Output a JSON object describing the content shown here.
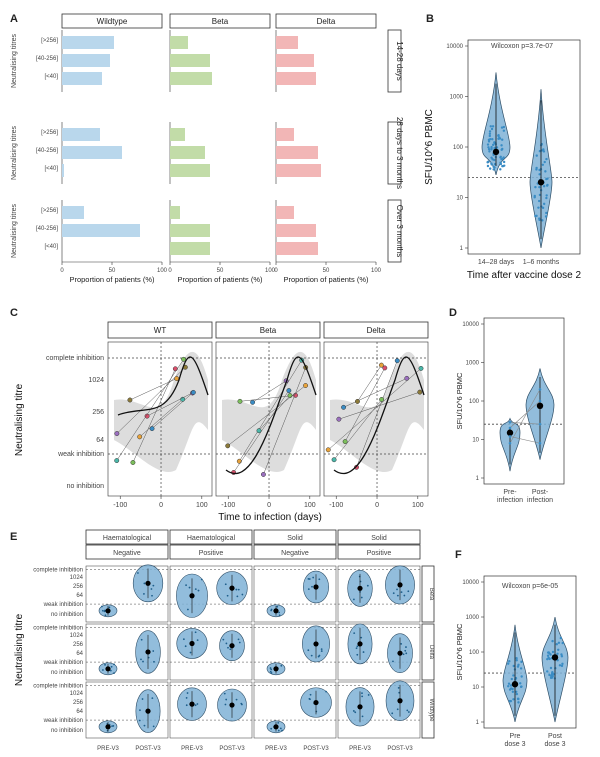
{
  "colors": {
    "wildtype": "#b9d7ec",
    "beta": "#c2dca8",
    "delta": "#f2b6b6",
    "violin": "#7fb2d6",
    "violin_edge": "#2d4d66",
    "dot": "#3a8cc4",
    "ribbon": "#d5d5d5",
    "ref": "#444444"
  },
  "chart_data": [
    {
      "id": "A",
      "type": "bar",
      "panel_letter": "A",
      "orientation": "horizontal",
      "strains": [
        "Wildtype",
        "Beta",
        "Delta"
      ],
      "periods": [
        "14-28 days",
        "28 days to 3 months",
        "Over 3 months"
      ],
      "categories": [
        "[>256]",
        "[40-256]",
        "[<40]"
      ],
      "values": [
        [
          [
            52,
            48,
            40
          ],
          [
            18,
            40,
            42
          ],
          [
            22,
            38,
            40
          ]
        ],
        [
          [
            38,
            60,
            2
          ],
          [
            15,
            35,
            40
          ],
          [
            18,
            42,
            45
          ]
        ],
        [
          [
            22,
            78,
            0
          ],
          [
            10,
            40,
            40
          ],
          [
            18,
            40,
            42
          ]
        ]
      ],
      "ylabel": "Neutralising titres",
      "xlabel": "Proportion of patients (%)",
      "xlim": [
        0,
        100
      ],
      "xticks": [
        "0",
        "50",
        "100"
      ]
    },
    {
      "id": "B",
      "type": "scatter",
      "panel_letter": "B",
      "annotation": "Wilcoxon p=3.7e-07",
      "categories": [
        "14–28 days",
        "1–6 months"
      ],
      "medians": [
        80,
        20
      ],
      "ylabel": "SFU/10^6 PBMC",
      "xlabel": "Time after vaccine dose 2",
      "yticks": [
        "1",
        "10",
        "100",
        "1000",
        "10000"
      ],
      "ylim": [
        1,
        10000
      ],
      "ref_line": 25,
      "yscale": "log"
    },
    {
      "id": "C",
      "type": "line",
      "panel_letter": "C",
      "facets": [
        "WT",
        "Beta",
        "Delta"
      ],
      "ylabel": "Neutralising titre",
      "xlabel": "Time to infection (days)",
      "yticks": [
        "complete inhibition",
        "1024",
        "256",
        "64",
        "weak inhibition",
        "no inhibition"
      ],
      "xticks": [
        "-100",
        "0",
        "100"
      ],
      "xlim": [
        -130,
        125
      ]
    },
    {
      "id": "D",
      "type": "scatter",
      "panel_letter": "D",
      "categories": [
        "Pre-infection",
        "Post-infection"
      ],
      "tick_labels": [
        [
          "Pre-",
          "infection"
        ],
        [
          "Post-",
          "infection"
        ]
      ],
      "medians": [
        15,
        75
      ],
      "ylabel": "SFU/10^6 PBMC",
      "yticks": [
        "1",
        "10",
        "100",
        "1000",
        "10000"
      ],
      "ylim": [
        1,
        10000
      ],
      "ref_line": 25,
      "yscale": "log"
    },
    {
      "id": "E",
      "type": "scatter",
      "panel_letter": "E",
      "columns": [
        {
          "group": "Haematological",
          "status": "Negative"
        },
        {
          "group": "Haematological",
          "status": "Positive"
        },
        {
          "group": "Solid",
          "status": "Negative"
        },
        {
          "group": "Solid",
          "status": "Positive"
        }
      ],
      "rows": [
        "Beta",
        "Delta",
        "Wildtype"
      ],
      "xcats": [
        "PRE-V3",
        "POST-V3"
      ],
      "ylabel": "Neutralising titre",
      "yticks": [
        "complete inhibition",
        "1024",
        "256",
        "64",
        "weak inhibition",
        "no inhibition"
      ]
    },
    {
      "id": "F",
      "type": "scatter",
      "panel_letter": "F",
      "annotation": "Wilcoxon p=6e-05",
      "categories": [
        "Pre dose 3",
        "Post dose 3"
      ],
      "tick_labels": [
        [
          "Pre",
          "dose 3"
        ],
        [
          "Post",
          "dose 3"
        ]
      ],
      "medians": [
        12,
        70
      ],
      "ylabel": "SFU/10^6 PBMC",
      "yticks": [
        "1",
        "10",
        "100",
        "1000",
        "10000"
      ],
      "ylim": [
        1,
        10000
      ],
      "ref_line": 25,
      "yscale": "log"
    }
  ]
}
